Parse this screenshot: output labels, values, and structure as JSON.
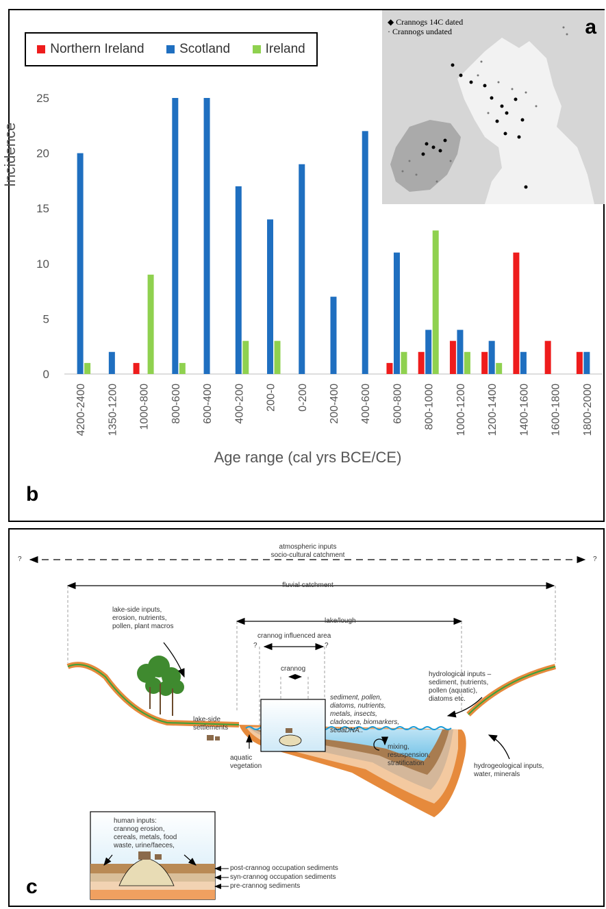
{
  "panel_b": {
    "letter": "b",
    "map_letter": "a",
    "map_legend": {
      "dated": "Crannogs 14C dated",
      "undated": "Crannogs undated"
    },
    "legend": [
      {
        "name": "Northern Ireland",
        "color": "#ee1c1c"
      },
      {
        "name": "Scotland",
        "color": "#1f6fc0"
      },
      {
        "name": "Ireland",
        "color": "#8fd14f"
      }
    ]
  },
  "chart_data": {
    "type": "bar",
    "title": "",
    "xlabel": "Age range (cal yrs BCE/CE)",
    "ylabel": "Incidence",
    "ylim": [
      0,
      25
    ],
    "yticks": [
      0,
      5,
      10,
      15,
      20,
      25
    ],
    "grid": false,
    "legend_position": "top-left",
    "categories": [
      "4200-2400",
      "1350-1200",
      "1000-800",
      "800-600",
      "600-400",
      "400-200",
      "200-0",
      "0-200",
      "200-400",
      "400-600",
      "600-800",
      "800-1000",
      "1000-1200",
      "1200-1400",
      "1400-1600",
      "1600-1800",
      "1800-2000"
    ],
    "series": [
      {
        "name": "Northern Ireland",
        "color": "#ee1c1c",
        "values": [
          0,
          0,
          1,
          0,
          0,
          0,
          0,
          0,
          0,
          0,
          1,
          2,
          3,
          2,
          11,
          3,
          2
        ]
      },
      {
        "name": "Scotland",
        "color": "#1f6fc0",
        "values": [
          20,
          2,
          0,
          25,
          25,
          17,
          14,
          19,
          7,
          22,
          11,
          4,
          4,
          3,
          2,
          0,
          2
        ]
      },
      {
        "name": "Ireland",
        "color": "#8fd14f",
        "values": [
          1,
          0,
          9,
          1,
          0,
          3,
          3,
          0,
          0,
          0,
          2,
          13,
          2,
          1,
          0,
          0,
          0
        ]
      }
    ]
  },
  "panel_c": {
    "letter": "c",
    "labels": {
      "atmospheric": "atmospheric inputs",
      "socio": "socio-cultural catchment",
      "fluvial": "fluvial catchment",
      "lake": "lake/lough",
      "influenced": "crannog influenced area",
      "crannog": "crannog",
      "q": "?",
      "lakeside_inputs": [
        "lake-side inputs,",
        "erosion, nutrients,",
        "pollen, plant macros"
      ],
      "settlements": [
        "lake-side",
        "settlements"
      ],
      "proxies": [
        "sediment, pollen,",
        "diatoms, nutrients,",
        "metals, insects,",
        "cladocera, biomarkers,",
        "sedaDNA.."
      ],
      "hydrological": [
        "hydrological inputs –",
        "sediment, nutrients,",
        "pollen (aquatic),",
        "diatoms etc."
      ],
      "mixing": [
        "mixing,",
        "resuspension,",
        "stratification"
      ],
      "aquatic": [
        "aquatic",
        "vegetation"
      ],
      "hydrogeological": [
        "hydrogeological inputs,",
        "water, minerals"
      ],
      "human": [
        "human inputs:",
        "crannog erosion,",
        "cereals, metals, food",
        "waste, urine/faeces,"
      ],
      "post": "post-crannog occupation sediments",
      "syn": "syn-crannog occupation sediments",
      "pre": "pre-crannog sediments"
    }
  }
}
